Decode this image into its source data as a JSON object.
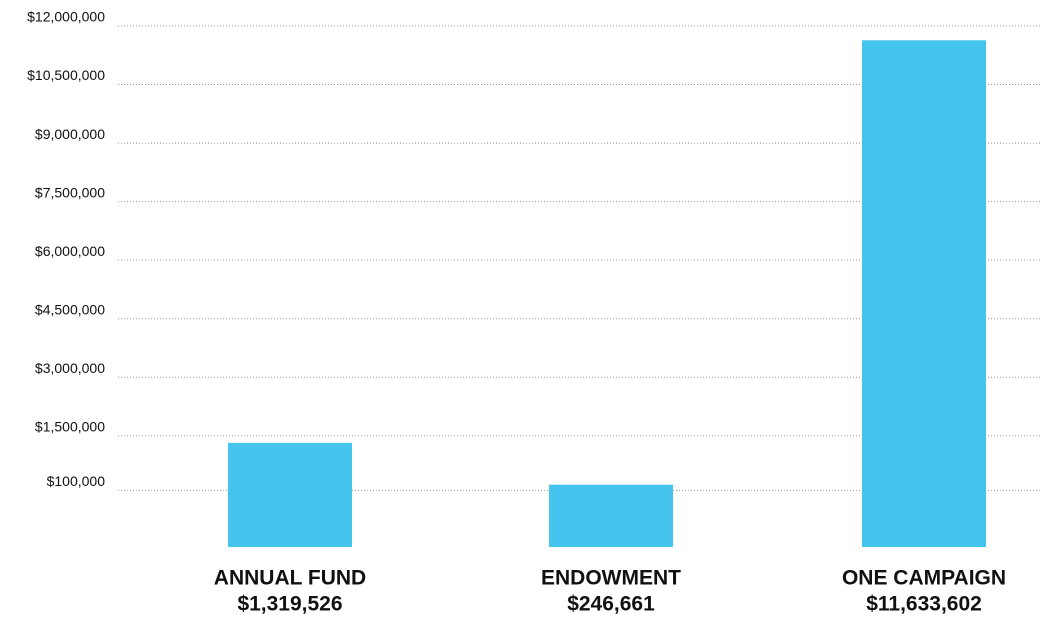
{
  "chart_data": {
    "type": "bar",
    "categories": [
      "ANNUAL FUND",
      "ENDOWMENT",
      "ONE CAMPAIGN"
    ],
    "values": [
      1319526,
      246661,
      11633602
    ],
    "value_labels": [
      "$1,319,526",
      "$246,661",
      "$11,633,602"
    ],
    "color": "#45c5ee",
    "ylim": [
      -1350000,
      12000000
    ],
    "yticks": [
      {
        "value": 100000,
        "label": "$100,000"
      },
      {
        "value": 1500000,
        "label": "$1,500,000"
      },
      {
        "value": 3000000,
        "label": "$3,000,000"
      },
      {
        "value": 4500000,
        "label": "$4,500,000"
      },
      {
        "value": 6000000,
        "label": "$6,000,000"
      },
      {
        "value": 7500000,
        "label": "$7,500,000"
      },
      {
        "value": 9000000,
        "label": "$9,000,000"
      },
      {
        "value": 10500000,
        "label": "$10,500,000"
      },
      {
        "value": 12000000,
        "label": "$12,000,000"
      }
    ],
    "grid": true
  }
}
